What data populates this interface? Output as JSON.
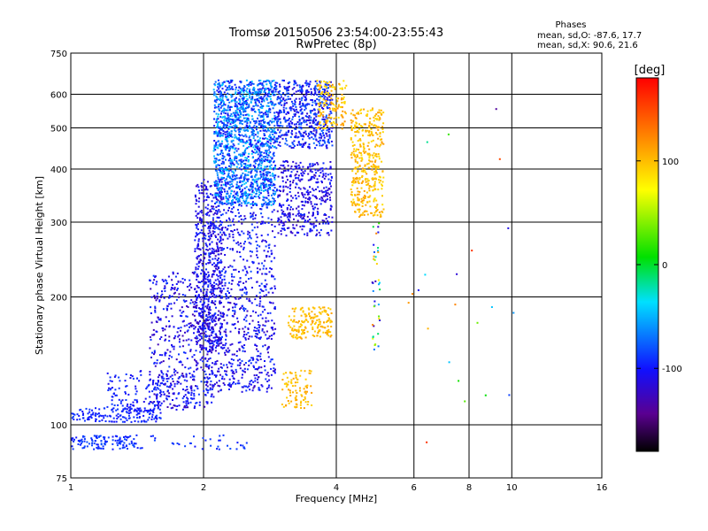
{
  "chart_data": {
    "type": "scatter",
    "title": "Tromsø 20150506 23:54:00-23:55:43",
    "subtitle": "RwPretec (8p)",
    "xlabel": "Frequency [MHz]",
    "ylabel": "Stationary phase Virtual Height [km]",
    "x_scale": "log2",
    "y_scale": "log",
    "xlim": [
      1,
      16
    ],
    "ylim": [
      75,
      750
    ],
    "x_ticks": [
      "1",
      "2",
      "4",
      "6",
      "8",
      "10",
      "16"
    ],
    "y_ticks": [
      "75",
      "100",
      "200",
      "300",
      "400",
      "500",
      "600",
      "750"
    ],
    "grid": true,
    "phase_box": {
      "title": "Phases",
      "line_o": "mean, sd,O: -87.6, 17.7",
      "line_x": "mean, sd,X:  90.6, 21.6"
    },
    "colorbar": {
      "label": "[deg]",
      "range": [
        -180,
        180
      ],
      "ticks": [
        "100",
        "0",
        "-100"
      ],
      "tick_values": [
        100,
        0,
        -100
      ]
    },
    "clusters": [
      {
        "xr": [
          1.0,
          1.45
        ],
        "yr": [
          88,
          95
        ],
        "n": 120,
        "phase": [
          -100,
          -80
        ]
      },
      {
        "xr": [
          1.5,
          2.5
        ],
        "yr": [
          88,
          95
        ],
        "n": 35,
        "phase": [
          -100,
          -80
        ]
      },
      {
        "xr": [
          1.0,
          1.6
        ],
        "yr": [
          102,
          110
        ],
        "n": 160,
        "phase": [
          -105,
          -85
        ]
      },
      {
        "xr": [
          1.2,
          1.9
        ],
        "yr": [
          108,
          135
        ],
        "n": 150,
        "phase": [
          -110,
          -85
        ]
      },
      {
        "xr": [
          1.5,
          2.1
        ],
        "yr": [
          110,
          230
        ],
        "n": 500,
        "phase": [
          -130,
          -85
        ]
      },
      {
        "xr": [
          1.9,
          2.2
        ],
        "yr": [
          150,
          380
        ],
        "n": 500,
        "phase": [
          -130,
          -90
        ]
      },
      {
        "xr": [
          2.0,
          2.9
        ],
        "yr": [
          120,
          200
        ],
        "n": 450,
        "phase": [
          -130,
          -85
        ]
      },
      {
        "xr": [
          2.0,
          2.9
        ],
        "yr": [
          200,
          330
        ],
        "n": 350,
        "phase": [
          -120,
          -80
        ]
      },
      {
        "xr": [
          2.1,
          2.9
        ],
        "yr": [
          330,
          650
        ],
        "n": 1600,
        "phase": [
          -110,
          -40
        ]
      },
      {
        "xr": [
          2.9,
          3.9
        ],
        "yr": [
          280,
          420
        ],
        "n": 400,
        "phase": [
          -125,
          -90
        ]
      },
      {
        "xr": [
          2.9,
          3.9
        ],
        "yr": [
          450,
          650
        ],
        "n": 600,
        "phase": [
          -120,
          -70
        ]
      },
      {
        "xr": [
          3.1,
          3.9
        ],
        "yr": [
          160,
          190
        ],
        "n": 170,
        "phase": [
          90,
          115
        ]
      },
      {
        "xr": [
          3.0,
          3.5
        ],
        "yr": [
          110,
          135
        ],
        "n": 90,
        "phase": [
          90,
          115
        ]
      },
      {
        "xr": [
          3.6,
          4.2
        ],
        "yr": [
          500,
          650
        ],
        "n": 140,
        "phase": [
          80,
          120
        ]
      },
      {
        "xr": [
          4.3,
          5.1
        ],
        "yr": [
          310,
          560
        ],
        "n": 400,
        "phase": [
          85,
          115
        ]
      },
      {
        "xr": [
          4.8,
          5.0
        ],
        "yr": [
          150,
          300
        ],
        "n": 40,
        "phase": [
          -140,
          130
        ]
      },
      {
        "xr": [
          5.8,
          10.5
        ],
        "yr": [
          85,
          600
        ],
        "n": 22,
        "phase": [
          -150,
          160
        ]
      }
    ]
  }
}
